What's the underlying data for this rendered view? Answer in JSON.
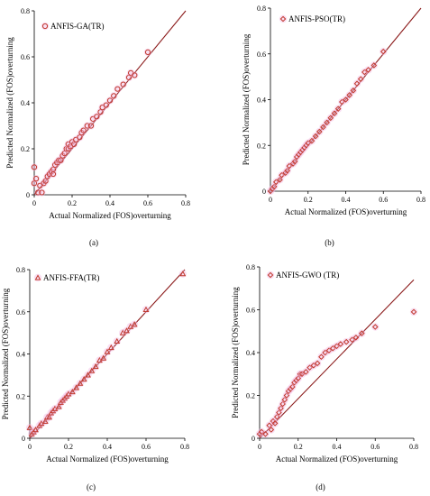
{
  "colors": {
    "marker": "#c0392b",
    "line": "#8b1a1a",
    "point_glow": "#f1b8e3",
    "axis": "#000000"
  },
  "charts": [
    {
      "type": "scatter",
      "label": "(a)",
      "legend": "ANFIS-GA(TR)",
      "marker": "circle",
      "xlabel": "Actual Normalized (FOS)overturning",
      "ylabel": "Predicted Normalized (FOS)overturning",
      "xticks": [
        "0",
        "0.2",
        "0.4",
        "0.6",
        "0.8"
      ],
      "yticks": [
        "0",
        "0.2",
        "0.4",
        "0.6",
        "0.8"
      ],
      "xlim": [
        0,
        0.8
      ],
      "ylim": [
        0,
        0.8
      ],
      "fit_line": {
        "x": [
          0,
          0.8
        ],
        "y": [
          0,
          0.8
        ]
      },
      "points": [
        [
          0.0,
          0.12
        ],
        [
          0.0,
          0.05
        ],
        [
          0.01,
          0.07
        ],
        [
          0.02,
          0.01
        ],
        [
          0.03,
          0.04
        ],
        [
          0.04,
          0.01
        ],
        [
          0.05,
          0.05
        ],
        [
          0.06,
          0.06
        ],
        [
          0.07,
          0.08
        ],
        [
          0.08,
          0.09
        ],
        [
          0.09,
          0.1
        ],
        [
          0.1,
          0.11
        ],
        [
          0.1,
          0.09
        ],
        [
          0.11,
          0.13
        ],
        [
          0.12,
          0.14
        ],
        [
          0.13,
          0.15
        ],
        [
          0.14,
          0.15
        ],
        [
          0.15,
          0.17
        ],
        [
          0.16,
          0.18
        ],
        [
          0.17,
          0.2
        ],
        [
          0.18,
          0.2
        ],
        [
          0.18,
          0.22
        ],
        [
          0.19,
          0.21
        ],
        [
          0.2,
          0.23
        ],
        [
          0.21,
          0.22
        ],
        [
          0.22,
          0.24
        ],
        [
          0.24,
          0.25
        ],
        [
          0.25,
          0.27
        ],
        [
          0.26,
          0.28
        ],
        [
          0.28,
          0.3
        ],
        [
          0.3,
          0.3
        ],
        [
          0.31,
          0.33
        ],
        [
          0.33,
          0.34
        ],
        [
          0.35,
          0.36
        ],
        [
          0.36,
          0.38
        ],
        [
          0.38,
          0.39
        ],
        [
          0.4,
          0.41
        ],
        [
          0.42,
          0.43
        ],
        [
          0.44,
          0.46
        ],
        [
          0.47,
          0.48
        ],
        [
          0.5,
          0.51
        ],
        [
          0.51,
          0.53
        ],
        [
          0.53,
          0.52
        ],
        [
          0.6,
          0.62
        ]
      ]
    },
    {
      "type": "scatter",
      "label": "(b)",
      "legend": "ANFIS-PSO(TR)",
      "marker": "diamond",
      "xlabel": "Actual Normalized (FOS)overturning",
      "ylabel": "Predicted Normalized (FOS)overturning",
      "xticks": [
        "0",
        "0.2",
        "0.4",
        "0.6",
        "0.8"
      ],
      "yticks": [
        "0",
        "0.2",
        "0.4",
        "0.6",
        "0.8"
      ],
      "xlim": [
        0,
        0.8
      ],
      "ylim": [
        0,
        0.8
      ],
      "fit_line": {
        "x": [
          0,
          0.8
        ],
        "y": [
          0,
          0.8
        ]
      },
      "points": [
        [
          0.0,
          0.0
        ],
        [
          0.01,
          0.01
        ],
        [
          0.02,
          0.02
        ],
        [
          0.03,
          0.04
        ],
        [
          0.05,
          0.05
        ],
        [
          0.06,
          0.07
        ],
        [
          0.08,
          0.08
        ],
        [
          0.09,
          0.09
        ],
        [
          0.1,
          0.11
        ],
        [
          0.12,
          0.12
        ],
        [
          0.13,
          0.13
        ],
        [
          0.14,
          0.15
        ],
        [
          0.15,
          0.16
        ],
        [
          0.16,
          0.17
        ],
        [
          0.17,
          0.18
        ],
        [
          0.18,
          0.19
        ],
        [
          0.19,
          0.2
        ],
        [
          0.2,
          0.21
        ],
        [
          0.22,
          0.22
        ],
        [
          0.24,
          0.24
        ],
        [
          0.26,
          0.26
        ],
        [
          0.28,
          0.28
        ],
        [
          0.3,
          0.3
        ],
        [
          0.32,
          0.32
        ],
        [
          0.34,
          0.34
        ],
        [
          0.36,
          0.36
        ],
        [
          0.38,
          0.39
        ],
        [
          0.4,
          0.4
        ],
        [
          0.42,
          0.42
        ],
        [
          0.44,
          0.44
        ],
        [
          0.46,
          0.47
        ],
        [
          0.48,
          0.49
        ],
        [
          0.5,
          0.52
        ],
        [
          0.52,
          0.53
        ],
        [
          0.55,
          0.55
        ],
        [
          0.6,
          0.61
        ]
      ]
    },
    {
      "type": "scatter",
      "label": "(c)",
      "legend": "ANFIS-FFA(TR)",
      "marker": "triangle",
      "xlabel": "Actual Normalized (FOS)overturning",
      "ylabel": "Predicted Normalized (FOS)overturning",
      "xticks": [
        "0",
        "0.2",
        "0.4",
        "0.6",
        "0.8"
      ],
      "yticks": [
        "0",
        "0.2",
        "0.4",
        "0.6",
        "0.8"
      ],
      "xlim": [
        0,
        0.8
      ],
      "ylim": [
        0,
        0.8
      ],
      "fit_line": {
        "x": [
          0,
          0.8
        ],
        "y": [
          0,
          0.8
        ]
      },
      "points": [
        [
          0.0,
          0.05
        ],
        [
          0.01,
          0.02
        ],
        [
          0.02,
          0.03
        ],
        [
          0.03,
          0.04
        ],
        [
          0.05,
          0.06
        ],
        [
          0.06,
          0.07
        ],
        [
          0.08,
          0.08
        ],
        [
          0.09,
          0.1
        ],
        [
          0.1,
          0.1
        ],
        [
          0.11,
          0.12
        ],
        [
          0.12,
          0.13
        ],
        [
          0.13,
          0.14
        ],
        [
          0.15,
          0.15
        ],
        [
          0.16,
          0.17
        ],
        [
          0.17,
          0.18
        ],
        [
          0.18,
          0.19
        ],
        [
          0.19,
          0.2
        ],
        [
          0.2,
          0.21
        ],
        [
          0.22,
          0.22
        ],
        [
          0.24,
          0.24
        ],
        [
          0.26,
          0.26
        ],
        [
          0.28,
          0.28
        ],
        [
          0.3,
          0.3
        ],
        [
          0.32,
          0.32
        ],
        [
          0.34,
          0.34
        ],
        [
          0.36,
          0.37
        ],
        [
          0.38,
          0.38
        ],
        [
          0.4,
          0.41
        ],
        [
          0.42,
          0.43
        ],
        [
          0.45,
          0.46
        ],
        [
          0.48,
          0.5
        ],
        [
          0.5,
          0.51
        ],
        [
          0.52,
          0.53
        ],
        [
          0.54,
          0.54
        ],
        [
          0.6,
          0.61
        ],
        [
          0.79,
          0.78
        ]
      ]
    },
    {
      "type": "scatter",
      "label": "(d)",
      "legend": "ANFIS-GWO (TR)",
      "marker": "diamond",
      "xlabel": "Actual Normalized (FOS)overturning",
      "ylabel": "Predicted Normalized (FOS)overturning",
      "xticks": [
        "0",
        "0.2",
        "0.4",
        "0.6",
        "0.8"
      ],
      "yticks": [
        "0",
        "0.2",
        "0.4",
        "0.6",
        "0.8"
      ],
      "xlim": [
        0,
        0.8
      ],
      "ylim": [
        0,
        0.8
      ],
      "fit_line": {
        "x": [
          0,
          0.8
        ],
        "y": [
          0,
          0.74
        ]
      },
      "points": [
        [
          0.0,
          0.02
        ],
        [
          0.01,
          0.03
        ],
        [
          0.03,
          0.02
        ],
        [
          0.05,
          0.06
        ],
        [
          0.06,
          0.04
        ],
        [
          0.07,
          0.08
        ],
        [
          0.08,
          0.07
        ],
        [
          0.09,
          0.1
        ],
        [
          0.1,
          0.12
        ],
        [
          0.11,
          0.14
        ],
        [
          0.12,
          0.16
        ],
        [
          0.13,
          0.18
        ],
        [
          0.14,
          0.2
        ],
        [
          0.15,
          0.22
        ],
        [
          0.16,
          0.23
        ],
        [
          0.17,
          0.24
        ],
        [
          0.18,
          0.26
        ],
        [
          0.19,
          0.27
        ],
        [
          0.2,
          0.28
        ],
        [
          0.21,
          0.3
        ],
        [
          0.22,
          0.3
        ],
        [
          0.24,
          0.31
        ],
        [
          0.26,
          0.33
        ],
        [
          0.28,
          0.34
        ],
        [
          0.3,
          0.35
        ],
        [
          0.32,
          0.38
        ],
        [
          0.34,
          0.4
        ],
        [
          0.36,
          0.41
        ],
        [
          0.38,
          0.42
        ],
        [
          0.4,
          0.43
        ],
        [
          0.42,
          0.44
        ],
        [
          0.45,
          0.45
        ],
        [
          0.48,
          0.46
        ],
        [
          0.5,
          0.47
        ],
        [
          0.53,
          0.49
        ],
        [
          0.6,
          0.52
        ],
        [
          0.8,
          0.59
        ]
      ]
    }
  ]
}
